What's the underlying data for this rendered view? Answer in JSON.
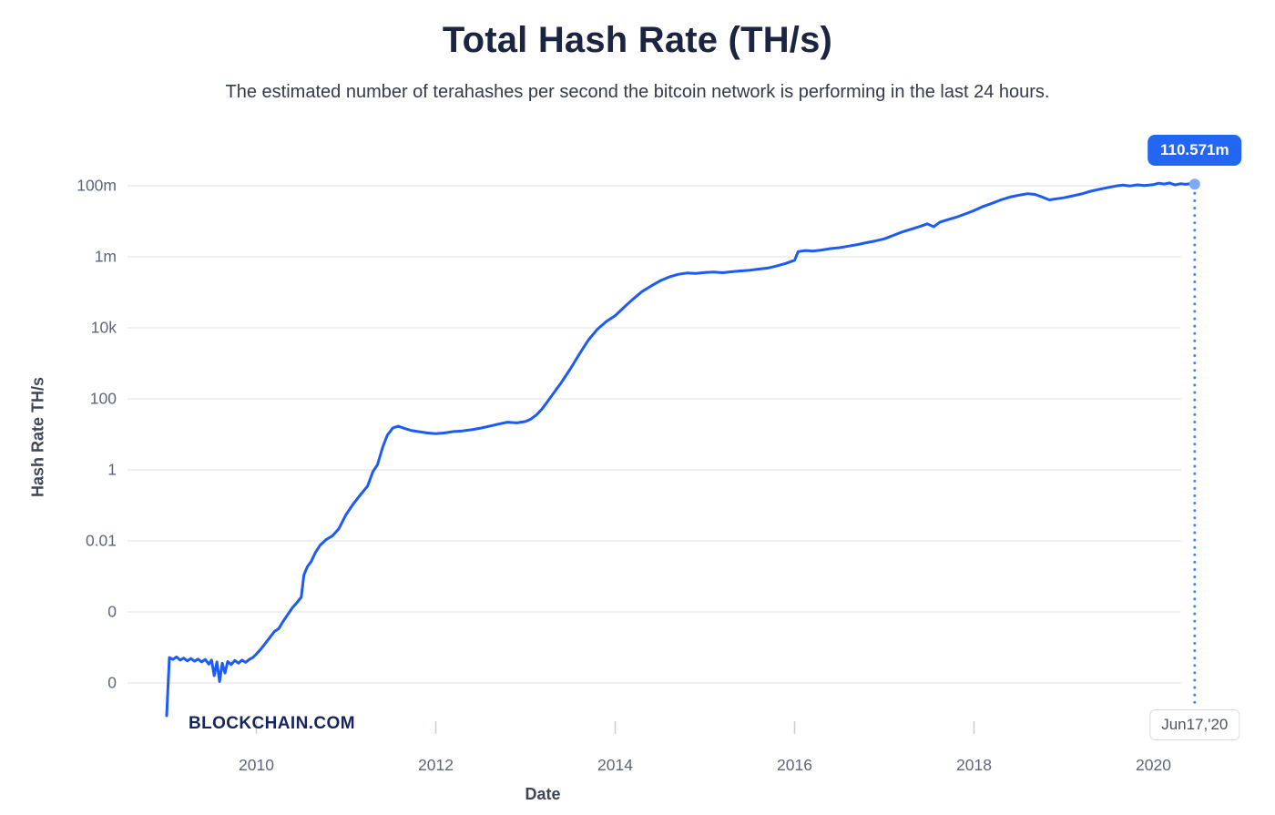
{
  "header": {
    "title": "Total Hash Rate (TH/s)",
    "subtitle": "The estimated number of terahashes per second the bitcoin network is performing in the last 24 hours."
  },
  "watermark": "BLOCKCHAIN.COM",
  "tooltip": {
    "value_label": "110.571m",
    "date_label": "Jun17,'20"
  },
  "colors": {
    "line": "#1c5bf5",
    "tooltip_bg": "#2366f2",
    "grid": "#e9ecf1",
    "tick_mark": "#c8cdd8",
    "axis_text": "#5d6678",
    "axis_title_text": "#3e4556",
    "title_text": "#1b2440",
    "subtitle_text": "#333a4a",
    "marker_fill": "#7fa9f7",
    "dotted_line": "#4a82f7",
    "date_box_border": "#d9dce3",
    "date_box_text": "#4a5160",
    "watermark_text": "#17255a"
  },
  "chart_data": {
    "type": "line",
    "title": "Total Hash Rate (TH/s)",
    "xlabel": "Date",
    "ylabel": "Hash Rate TH/s",
    "unit": "TH/s",
    "y_scale": "log",
    "grid": "horizontal",
    "legend": "none",
    "x_range": [
      2009.0,
      2020.6
    ],
    "x_ticks": [
      {
        "label": "2010",
        "year": 2010
      },
      {
        "label": "2012",
        "year": 2012
      },
      {
        "label": "2014",
        "year": 2014
      },
      {
        "label": "2016",
        "year": 2016
      },
      {
        "label": "2018",
        "year": 2018
      },
      {
        "label": "2020",
        "year": 2020
      }
    ],
    "y_ticks": [
      {
        "label": "100m",
        "value": 100000000.0
      },
      {
        "label": "1m",
        "value": 1000000.0
      },
      {
        "label": "10k",
        "value": 10000.0
      },
      {
        "label": "100",
        "value": 100.0
      },
      {
        "label": "1",
        "value": 1
      },
      {
        "label": "0.01",
        "value": 0.01
      },
      {
        "label": "0",
        "value": 0.0001
      },
      {
        "label": "0",
        "value": 1e-06
      }
    ],
    "last_point": {
      "x": 2020.46,
      "value": 110571000,
      "value_label": "110.571m",
      "date_label": "Jun17,'20"
    },
    "series": [
      {
        "name": "Hash Rate",
        "points": [
          [
            2009.0,
            1.2e-07
          ],
          [
            2009.03,
            5.2e-06
          ],
          [
            2009.07,
            4.6e-06
          ],
          [
            2009.11,
            5.4e-06
          ],
          [
            2009.15,
            4.4e-06
          ],
          [
            2009.19,
            5e-06
          ],
          [
            2009.23,
            4.2e-06
          ],
          [
            2009.27,
            4.9e-06
          ],
          [
            2009.31,
            4.1e-06
          ],
          [
            2009.35,
            4.7e-06
          ],
          [
            2009.39,
            3.9e-06
          ],
          [
            2009.43,
            4.6e-06
          ],
          [
            2009.47,
            3.4e-06
          ],
          [
            2009.5,
            4.4e-06
          ],
          [
            2009.53,
            1.6e-06
          ],
          [
            2009.56,
            3.9e-06
          ],
          [
            2009.59,
            1.1e-06
          ],
          [
            2009.62,
            3.6e-06
          ],
          [
            2009.65,
            1.9e-06
          ],
          [
            2009.68,
            4e-06
          ],
          [
            2009.72,
            3.3e-06
          ],
          [
            2009.76,
            4.3e-06
          ],
          [
            2009.8,
            3.6e-06
          ],
          [
            2009.84,
            4.4e-06
          ],
          [
            2009.88,
            3.8e-06
          ],
          [
            2009.92,
            4.6e-06
          ],
          [
            2009.96,
            5.2e-06
          ],
          [
            2010.0,
            6.5e-06
          ],
          [
            2010.05,
            9e-06
          ],
          [
            2010.1,
            1.3e-05
          ],
          [
            2010.15,
            1.9e-05
          ],
          [
            2010.2,
            2.8e-05
          ],
          [
            2010.25,
            3.4e-05
          ],
          [
            2010.3,
            5.5e-05
          ],
          [
            2010.35,
            8.5e-05
          ],
          [
            2010.4,
            0.00013
          ],
          [
            2010.45,
            0.00018
          ],
          [
            2010.5,
            0.00026
          ],
          [
            2010.53,
            0.0011
          ],
          [
            2010.57,
            0.0019
          ],
          [
            2010.61,
            0.0026
          ],
          [
            2010.66,
            0.0048
          ],
          [
            2010.71,
            0.0075
          ],
          [
            2010.78,
            0.011
          ],
          [
            2010.85,
            0.014
          ],
          [
            2010.92,
            0.022
          ],
          [
            2011.0,
            0.055
          ],
          [
            2011.08,
            0.11
          ],
          [
            2011.16,
            0.2
          ],
          [
            2011.24,
            0.35
          ],
          [
            2011.3,
            0.9
          ],
          [
            2011.35,
            1.4
          ],
          [
            2011.41,
            4.5
          ],
          [
            2011.46,
            9.5
          ],
          [
            2011.52,
            15
          ],
          [
            2011.58,
            17
          ],
          [
            2011.64,
            15
          ],
          [
            2011.72,
            13
          ],
          [
            2011.8,
            12
          ],
          [
            2011.9,
            11
          ],
          [
            2012.0,
            10.5
          ],
          [
            2012.1,
            11
          ],
          [
            2012.2,
            12
          ],
          [
            2012.3,
            12.5
          ],
          [
            2012.4,
            13.5
          ],
          [
            2012.5,
            15
          ],
          [
            2012.6,
            17
          ],
          [
            2012.7,
            19.5
          ],
          [
            2012.8,
            22
          ],
          [
            2012.9,
            21
          ],
          [
            2013.0,
            23
          ],
          [
            2013.06,
            27
          ],
          [
            2013.12,
            35
          ],
          [
            2013.18,
            50
          ],
          [
            2013.24,
            80
          ],
          [
            2013.3,
            130
          ],
          [
            2013.4,
            290
          ],
          [
            2013.5,
            700
          ],
          [
            2013.6,
            1800
          ],
          [
            2013.7,
            4500
          ],
          [
            2013.8,
            9000
          ],
          [
            2013.9,
            15000
          ],
          [
            2014.0,
            22000
          ],
          [
            2014.1,
            38000
          ],
          [
            2014.2,
            65000
          ],
          [
            2014.3,
            105000
          ],
          [
            2014.4,
            150000
          ],
          [
            2014.5,
            210000
          ],
          [
            2014.6,
            270000
          ],
          [
            2014.7,
            320000
          ],
          [
            2014.8,
            350000
          ],
          [
            2014.9,
            340000
          ],
          [
            2015.0,
            360000
          ],
          [
            2015.1,
            370000
          ],
          [
            2015.2,
            355000
          ],
          [
            2015.3,
            380000
          ],
          [
            2015.4,
            400000
          ],
          [
            2015.5,
            420000
          ],
          [
            2015.6,
            450000
          ],
          [
            2015.7,
            480000
          ],
          [
            2015.8,
            550000
          ],
          [
            2015.9,
            650000
          ],
          [
            2016.0,
            800000
          ],
          [
            2016.04,
            1400000.0
          ],
          [
            2016.12,
            1500000.0
          ],
          [
            2016.2,
            1450000.0
          ],
          [
            2016.3,
            1550000.0
          ],
          [
            2016.4,
            1700000.0
          ],
          [
            2016.5,
            1800000.0
          ],
          [
            2016.6,
            2000000.0
          ],
          [
            2016.7,
            2200000.0
          ],
          [
            2016.8,
            2500000.0
          ],
          [
            2016.9,
            2800000.0
          ],
          [
            2017.0,
            3200000.0
          ],
          [
            2017.1,
            4000000.0
          ],
          [
            2017.2,
            5000000.0
          ],
          [
            2017.3,
            6000000.0
          ],
          [
            2017.4,
            7200000.0
          ],
          [
            2017.48,
            8500000.0
          ],
          [
            2017.55,
            7000000.0
          ],
          [
            2017.62,
            9500000.0
          ],
          [
            2017.7,
            11000000.0
          ],
          [
            2017.8,
            13000000.0
          ],
          [
            2017.9,
            16000000.0
          ],
          [
            2018.0,
            20000000.0
          ],
          [
            2018.1,
            26000000.0
          ],
          [
            2018.2,
            32000000.0
          ],
          [
            2018.3,
            40000000.0
          ],
          [
            2018.4,
            48000000.0
          ],
          [
            2018.5,
            54000000.0
          ],
          [
            2018.6,
            60000000.0
          ],
          [
            2018.68,
            57000000.0
          ],
          [
            2018.76,
            48000000.0
          ],
          [
            2018.84,
            40000000.0
          ],
          [
            2018.92,
            43000000.0
          ],
          [
            2019.0,
            46000000.0
          ],
          [
            2019.1,
            52000000.0
          ],
          [
            2019.2,
            59000000.0
          ],
          [
            2019.3,
            70000000.0
          ],
          [
            2019.4,
            80000000.0
          ],
          [
            2019.5,
            90000000.0
          ],
          [
            2019.58,
            98000000.0
          ],
          [
            2019.66,
            104000000.0
          ],
          [
            2019.74,
            99000000.0
          ],
          [
            2019.82,
            106000000.0
          ],
          [
            2019.9,
            102000000.0
          ],
          [
            2020.0,
            108000000.0
          ],
          [
            2020.06,
            118000000.0
          ],
          [
            2020.12,
            112000000.0
          ],
          [
            2020.18,
            120000000.0
          ],
          [
            2020.24,
            106000000.0
          ],
          [
            2020.3,
            114000000.0
          ],
          [
            2020.36,
            110000000.0
          ],
          [
            2020.42,
            115000000.0
          ],
          [
            2020.46,
            110571000.0
          ]
        ]
      }
    ]
  }
}
